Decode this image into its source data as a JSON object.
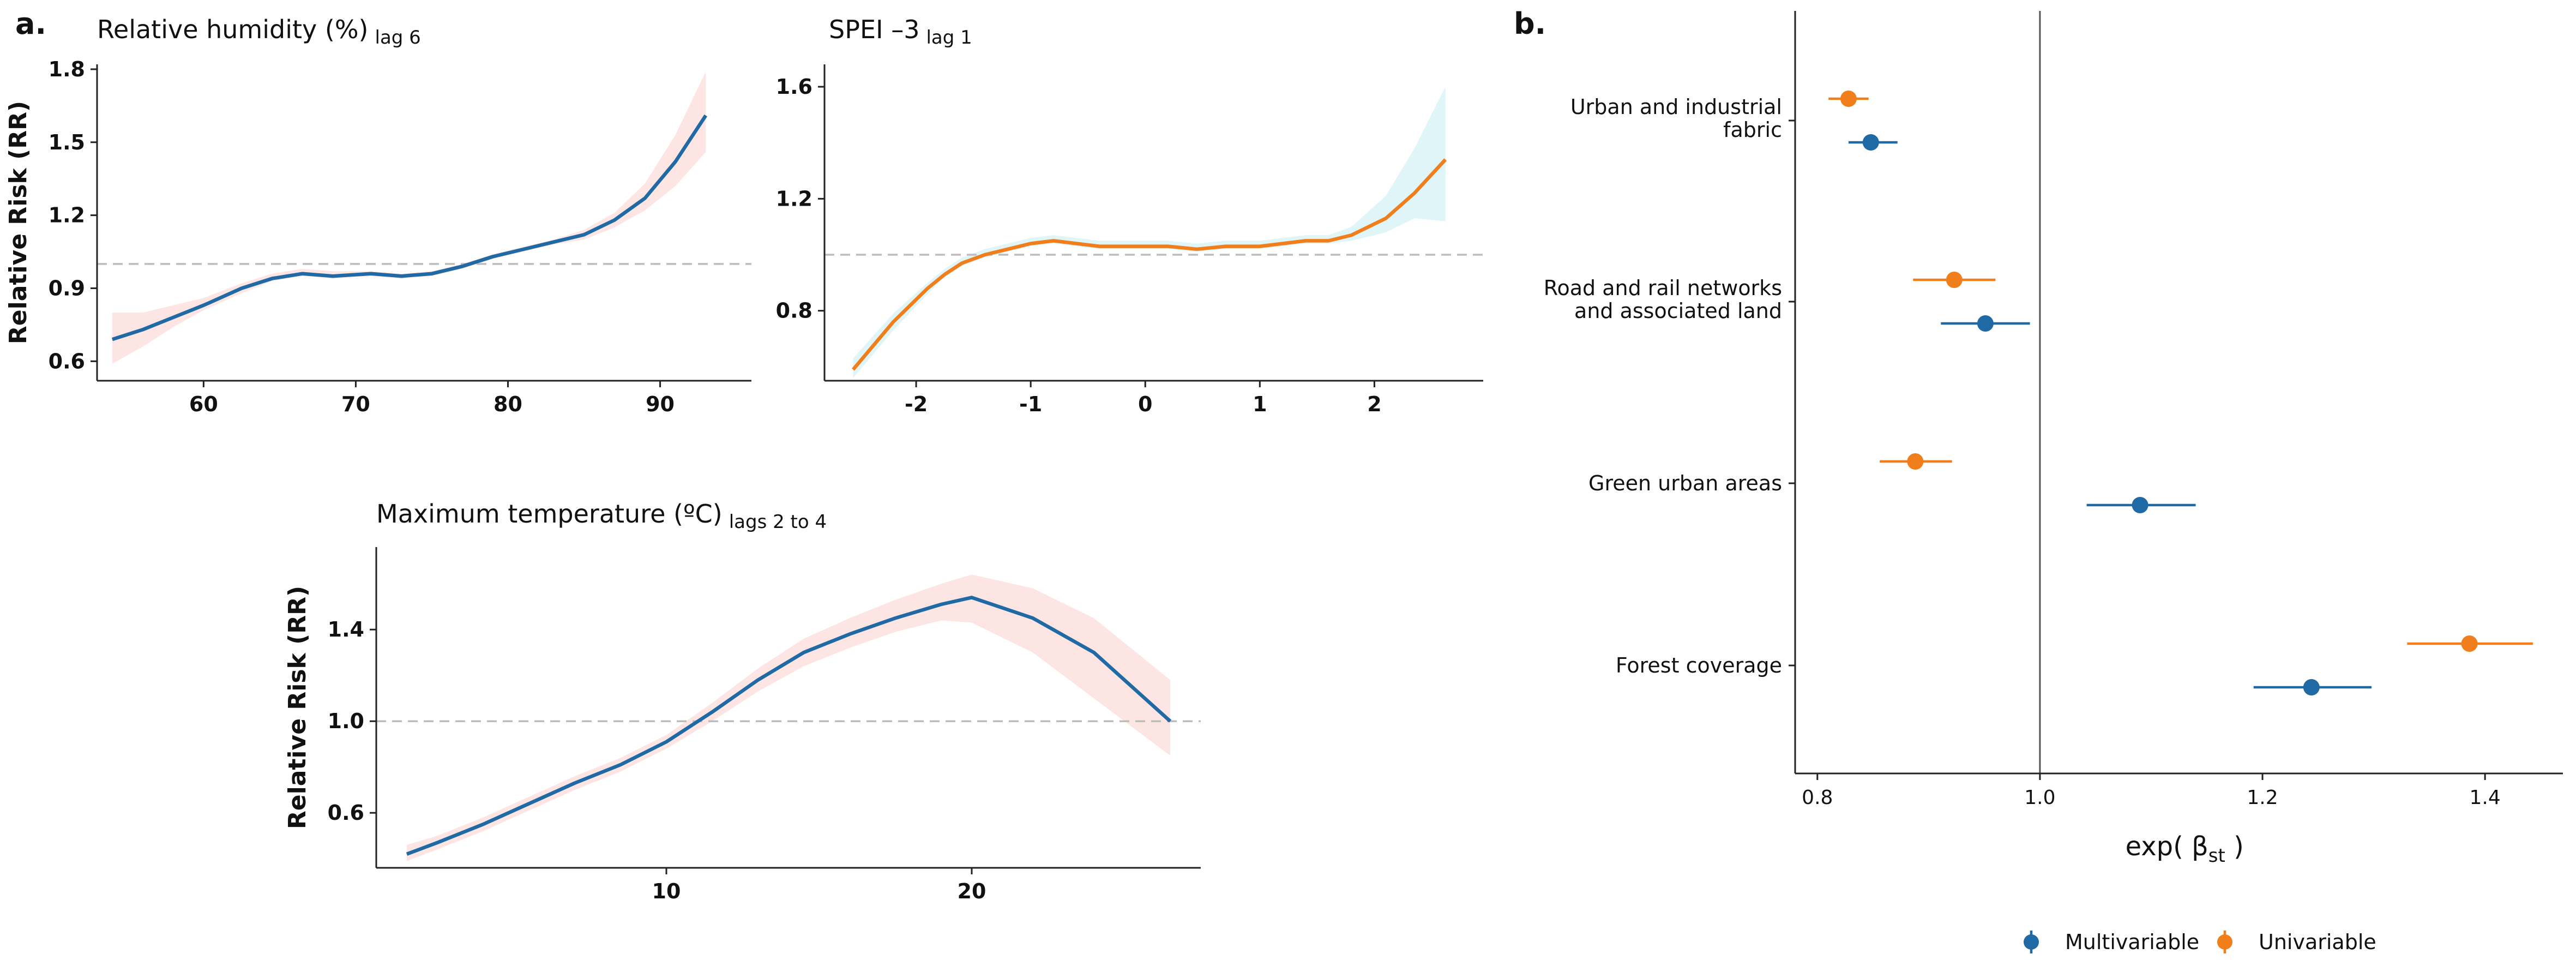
{
  "panels": {
    "a": "a.",
    "b": "b."
  },
  "colors": {
    "multivariable": "#1f6aa5",
    "univariable": "#f07f1b",
    "ribbon_pink": "#fde5e3",
    "ribbon_cyan": "#dff5f8",
    "reference_line": "#bdbdbd"
  },
  "chart_data": [
    {
      "id": "humidity",
      "type": "line",
      "title": "Relative humidity (%)",
      "title_sub": "lag 6",
      "ylabel": "Relative Risk (RR)",
      "xlim": [
        53,
        96
      ],
      "ylim": [
        0.52,
        1.82
      ],
      "xticks": [
        60,
        70,
        80,
        90
      ],
      "yticks": [
        0.6,
        0.9,
        1.2,
        1.5,
        1.8
      ],
      "ytick_labels": [
        "0.6",
        "0.9",
        "1.2",
        "1.5",
        "1.8"
      ],
      "reference": 1.0,
      "line_color": "#1f6aa5",
      "ribbon_color": "#fde5e3",
      "x": [
        54,
        56,
        58,
        60,
        62.5,
        64.5,
        66.5,
        68.5,
        71,
        73,
        75,
        77,
        79,
        81,
        83,
        85,
        87,
        89,
        91,
        93
      ],
      "y": [
        0.69,
        0.73,
        0.78,
        0.83,
        0.9,
        0.94,
        0.96,
        0.95,
        0.96,
        0.95,
        0.96,
        0.99,
        1.03,
        1.06,
        1.09,
        1.12,
        1.18,
        1.27,
        1.42,
        1.61
      ],
      "lower": [
        0.59,
        0.66,
        0.74,
        0.81,
        0.88,
        0.93,
        0.95,
        0.94,
        0.95,
        0.94,
        0.95,
        0.98,
        1.02,
        1.05,
        1.08,
        1.1,
        1.15,
        1.22,
        1.32,
        1.46
      ],
      "upper": [
        0.8,
        0.8,
        0.83,
        0.86,
        0.92,
        0.96,
        0.98,
        0.97,
        0.97,
        0.96,
        0.97,
        1.0,
        1.04,
        1.07,
        1.1,
        1.14,
        1.21,
        1.33,
        1.53,
        1.79
      ]
    },
    {
      "id": "spei",
      "type": "line",
      "title": "SPEI –3",
      "title_sub": "lag 1",
      "ylabel": "",
      "xlim": [
        -2.8,
        2.95
      ],
      "ylim": [
        0.55,
        1.68
      ],
      "xticks": [
        -2,
        -1,
        0,
        1,
        2
      ],
      "xtick_labels": [
        "-2",
        "-1",
        "0",
        "1",
        "2"
      ],
      "yticks": [
        0.8,
        1.2,
        1.6
      ],
      "ytick_labels": [
        "0.8",
        "1.2",
        "1.6"
      ],
      "reference": 1.0,
      "line_color": "#f07f1b",
      "ribbon_color": "#dff5f8",
      "x": [
        -2.55,
        -2.2,
        -1.9,
        -1.75,
        -1.6,
        -1.4,
        -1.2,
        -1.0,
        -0.8,
        -0.6,
        -0.4,
        -0.2,
        0.0,
        0.2,
        0.45,
        0.7,
        1.0,
        1.2,
        1.4,
        1.6,
        1.8,
        2.1,
        2.35,
        2.62
      ],
      "y": [
        0.59,
        0.76,
        0.88,
        0.93,
        0.97,
        1.0,
        1.02,
        1.04,
        1.05,
        1.04,
        1.03,
        1.03,
        1.03,
        1.03,
        1.02,
        1.03,
        1.03,
        1.04,
        1.05,
        1.05,
        1.07,
        1.13,
        1.22,
        1.34
      ],
      "lower": [
        0.56,
        0.73,
        0.86,
        0.92,
        0.96,
        0.99,
        1.01,
        1.03,
        1.04,
        1.03,
        1.02,
        1.02,
        1.02,
        1.02,
        1.01,
        1.02,
        1.02,
        1.03,
        1.04,
        1.04,
        1.05,
        1.08,
        1.13,
        1.12
      ],
      "upper": [
        0.63,
        0.79,
        0.9,
        0.95,
        0.99,
        1.02,
        1.04,
        1.06,
        1.07,
        1.06,
        1.05,
        1.05,
        1.05,
        1.05,
        1.04,
        1.05,
        1.05,
        1.06,
        1.07,
        1.07,
        1.1,
        1.21,
        1.38,
        1.6
      ]
    },
    {
      "id": "temperature",
      "type": "line",
      "title": "Maximum temperature (ºC)",
      "title_sub": "lags 2 to 4",
      "ylabel": "Relative Risk (RR)",
      "xlim": [
        0.5,
        27.5
      ],
      "ylim": [
        0.36,
        1.76
      ],
      "xticks": [
        10,
        20
      ],
      "yticks": [
        0.6,
        1.0,
        1.4
      ],
      "ytick_labels": [
        "0.6",
        "1.0",
        "1.4"
      ],
      "reference": 1.0,
      "line_color": "#1f6aa5",
      "ribbon_color": "#fde5e3",
      "x": [
        1.5,
        2.5,
        4,
        5.5,
        7,
        8.5,
        10,
        11.5,
        13,
        14.5,
        16,
        17.5,
        19,
        20,
        22,
        24,
        26.5
      ],
      "y": [
        0.42,
        0.47,
        0.55,
        0.64,
        0.73,
        0.81,
        0.91,
        1.04,
        1.18,
        1.3,
        1.38,
        1.45,
        1.51,
        1.54,
        1.45,
        1.3,
        1.0
      ],
      "lower": [
        0.39,
        0.44,
        0.52,
        0.61,
        0.7,
        0.78,
        0.88,
        1.0,
        1.13,
        1.24,
        1.32,
        1.39,
        1.44,
        1.43,
        1.3,
        1.1,
        0.85
      ],
      "upper": [
        0.46,
        0.5,
        0.58,
        0.67,
        0.76,
        0.84,
        0.94,
        1.08,
        1.23,
        1.36,
        1.45,
        1.53,
        1.6,
        1.64,
        1.58,
        1.45,
        1.18
      ]
    },
    {
      "id": "forest",
      "type": "scatter",
      "xlabel": "exp( β",
      "xlabel_sub": "st",
      "xlabel_close": " )",
      "xlim": [
        0.78,
        1.47
      ],
      "xticks": [
        0.8,
        1.0,
        1.2,
        1.4
      ],
      "xtick_labels": [
        "0.8",
        "1.0",
        "1.2",
        "1.4"
      ],
      "reference": 1.0,
      "categories": [
        {
          "line1": "Urban and industrial",
          "line2": "fabric"
        },
        {
          "line1": "Road and rail networks",
          "line2": "and associated land"
        },
        {
          "line1": "Green urban areas",
          "line2": ""
        },
        {
          "line1": "Forest coverage",
          "line2": ""
        }
      ],
      "series": [
        {
          "name": "Multivariable",
          "color": "#1f6aa5",
          "points": [
            {
              "est": 0.848,
              "lo": 0.828,
              "hi": 0.872
            },
            {
              "est": 0.951,
              "lo": 0.911,
              "hi": 0.991
            },
            {
              "est": 1.09,
              "lo": 1.042,
              "hi": 1.14
            },
            {
              "est": 1.244,
              "lo": 1.192,
              "hi": 1.298
            }
          ]
        },
        {
          "name": "Univariable",
          "color": "#f07f1b",
          "points": [
            {
              "est": 0.828,
              "lo": 0.81,
              "hi": 0.846
            },
            {
              "est": 0.923,
              "lo": 0.886,
              "hi": 0.96
            },
            {
              "est": 0.888,
              "lo": 0.856,
              "hi": 0.921
            },
            {
              "est": 1.386,
              "lo": 1.33,
              "hi": 1.443
            }
          ]
        }
      ],
      "legend_position": "bottom"
    }
  ]
}
